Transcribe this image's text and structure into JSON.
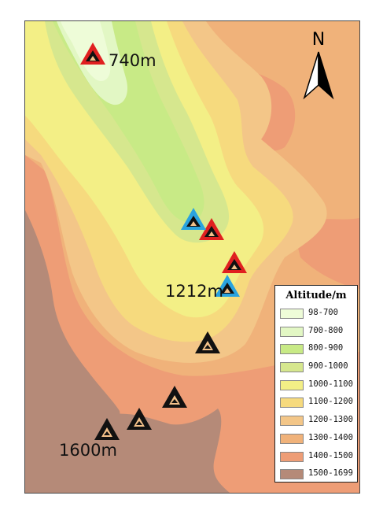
{
  "map": {
    "elevation_labels": [
      "740m",
      "1212m",
      "1600m"
    ],
    "north_label": "N",
    "legend": {
      "title": "Altitude/m",
      "classes": [
        {
          "range": "98-700",
          "color": "#eefcd8"
        },
        {
          "range": "700-800",
          "color": "#e2f7c4"
        },
        {
          "range": "800-900",
          "color": "#c8ea86"
        },
        {
          "range": "900-1000",
          "color": "#d6e78e"
        },
        {
          "range": "1000-1100",
          "color": "#f3ef86"
        },
        {
          "range": "1100-1200",
          "color": "#f6da7e"
        },
        {
          "range": "1200-1300",
          "color": "#f3c688"
        },
        {
          "range": "1300-1400",
          "color": "#f0b27a"
        },
        {
          "range": "1400-1500",
          "color": "#ee9d76"
        },
        {
          "range": "1500-1699",
          "color": "#b58a78"
        }
      ]
    },
    "site_marker_colors": {
      "red": "#e02020",
      "blue": "#29a3df",
      "black": "#111111",
      "inner": "#f4c18a"
    },
    "marker_counts": {
      "red": 3,
      "blue": 2,
      "black": 4
    }
  }
}
